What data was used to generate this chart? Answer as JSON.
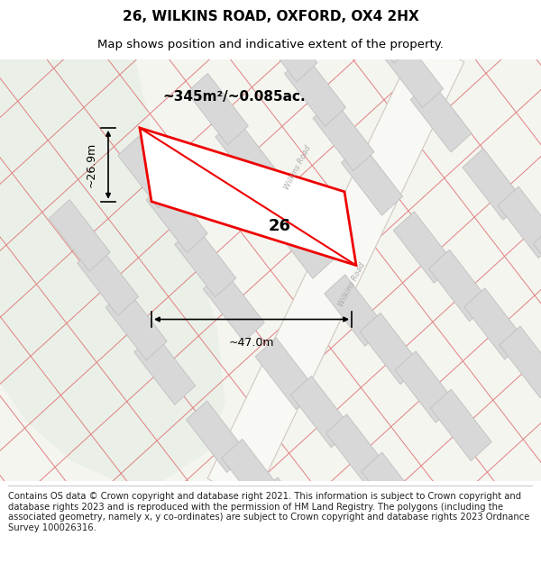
{
  "title": "26, WILKINS ROAD, OXFORD, OX4 2HX",
  "subtitle": "Map shows position and indicative extent of the property.",
  "footer": "Contains OS data © Crown copyright and database right 2021. This information is subject to Crown copyright and database rights 2023 and is reproduced with the permission of HM Land Registry. The polygons (including the associated geometry, namely x, y co-ordinates) are subject to Crown copyright and database rights 2023 Ordnance Survey 100026316.",
  "area_label": "~345m²/~0.085ac.",
  "width_label": "~47.0m",
  "height_label": "~26.9m",
  "number_label": "26",
  "map_bg": "#f5f5f0",
  "green_color": "#eaf0e8",
  "building_fill": "#d8d8d8",
  "building_edge": "#c0c0c0",
  "road_line_color": "#e08080",
  "road_bg": "#f0eeea",
  "plot_fill": "#ffffff",
  "plot_stroke": "#ee0000",
  "title_fontsize": 11,
  "subtitle_fontsize": 9.5,
  "footer_fontsize": 7.2,
  "label_fontsize": 9
}
